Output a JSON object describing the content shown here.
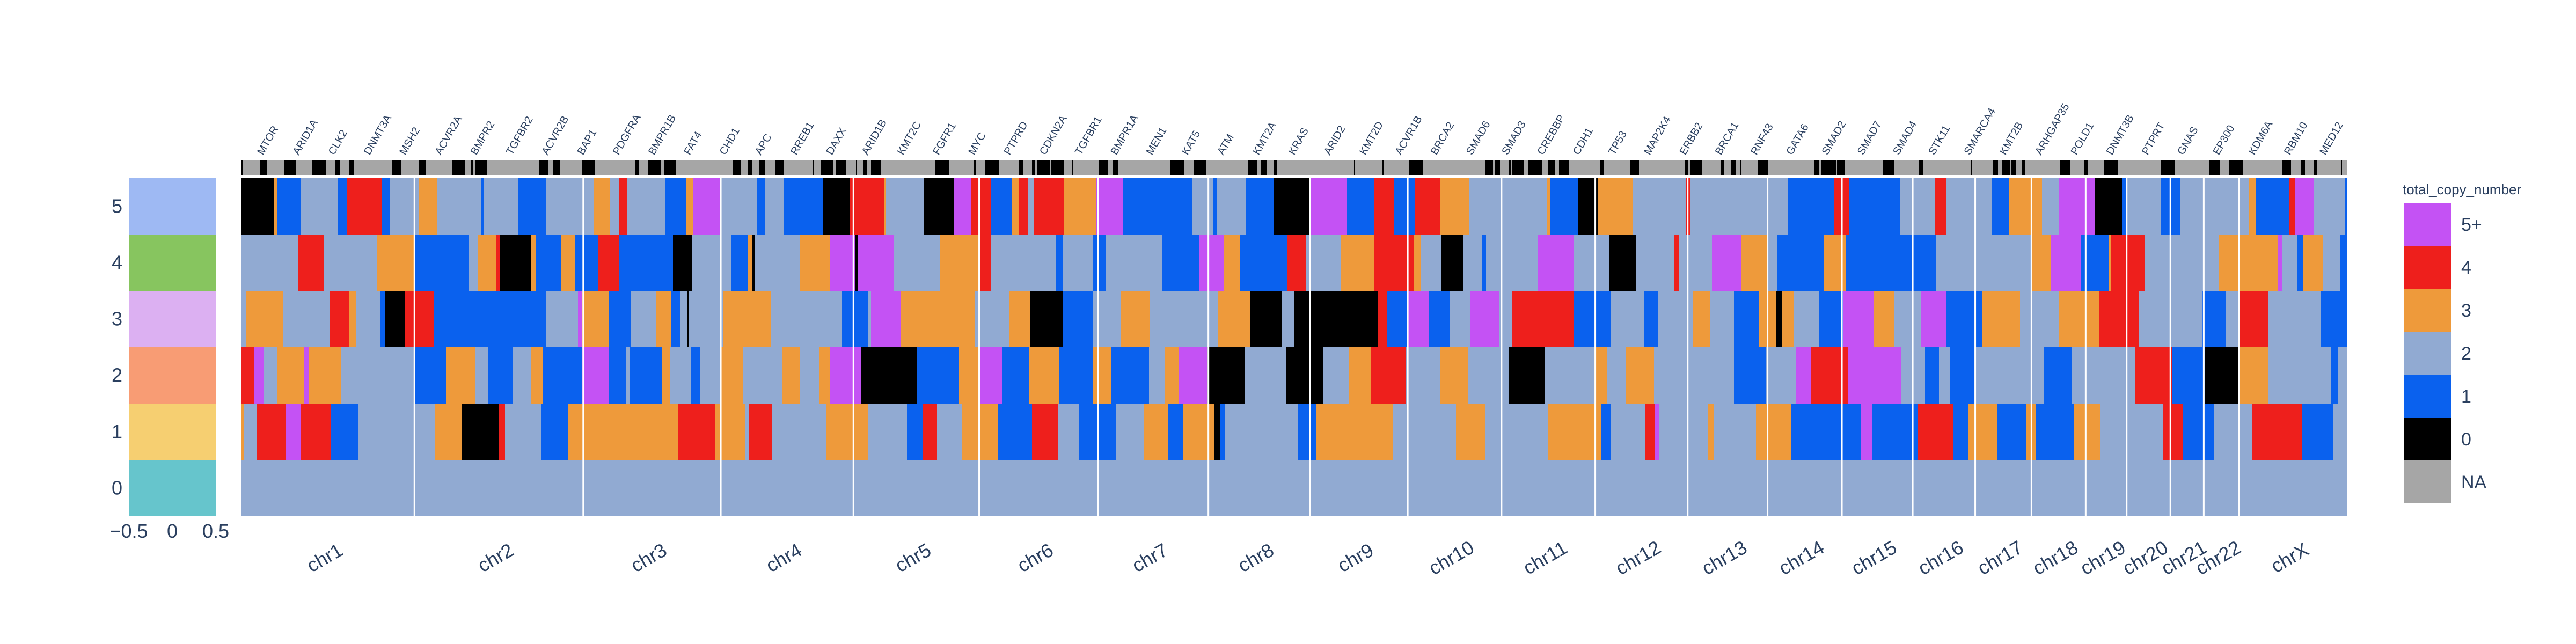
{
  "chart_data": {
    "type": "heatmap",
    "legend": {
      "title": "total_copy_number",
      "placement": "right",
      "entries": [
        {
          "label": "5+",
          "color": "#c452f4"
        },
        {
          "label": "4",
          "color": "#ee1f1c"
        },
        {
          "label": "3",
          "color": "#ee9a3b"
        },
        {
          "label": "2",
          "color": "#91aad2"
        },
        {
          "label": "1",
          "color": "#0a61ee"
        },
        {
          "label": "0",
          "color": "#000000"
        },
        {
          "label": "NA",
          "color": "#a6a6a6"
        }
      ]
    },
    "sample_track": {
      "x_ticks": [
        "−0.5",
        "0",
        "0.5"
      ],
      "xlim": [
        -0.5,
        0.5
      ],
      "y_ticks": [
        "0",
        "1",
        "2",
        "3",
        "4",
        "5"
      ],
      "colors": [
        "#66c5cc",
        "#f6cf71",
        "#f89c74",
        "#dcb0f2",
        "#87c55f",
        "#9eb9f3"
      ]
    },
    "chromosomes": [
      {
        "name": "chr1",
        "length": 249
      },
      {
        "name": "chr2",
        "length": 243
      },
      {
        "name": "chr3",
        "length": 198
      },
      {
        "name": "chr4",
        "length": 191
      },
      {
        "name": "chr5",
        "length": 181
      },
      {
        "name": "chr6",
        "length": 171
      },
      {
        "name": "chr7",
        "length": 159
      },
      {
        "name": "chr8",
        "length": 146
      },
      {
        "name": "chr9",
        "length": 141
      },
      {
        "name": "chr10",
        "length": 135
      },
      {
        "name": "chr11",
        "length": 135
      },
      {
        "name": "chr12",
        "length": 133
      },
      {
        "name": "chr13",
        "length": 115
      },
      {
        "name": "chr14",
        "length": 107
      },
      {
        "name": "chr15",
        "length": 102
      },
      {
        "name": "chr16",
        "length": 90
      },
      {
        "name": "chr17",
        "length": 81
      },
      {
        "name": "chr18",
        "length": 78
      },
      {
        "name": "chr19",
        "length": 59
      },
      {
        "name": "chr20",
        "length": 63
      },
      {
        "name": "chr21",
        "length": 48
      },
      {
        "name": "chr22",
        "length": 51
      },
      {
        "name": "chrX",
        "length": 155
      }
    ],
    "genes": [
      "MTOR",
      "ARID1A",
      "CLK2",
      "DNMT3A",
      "MSH2",
      "ACVR2A",
      "BMPR2",
      "TGFBR2",
      "ACVR2B",
      "BAP1",
      "PDGFRA",
      "BMPR1B",
      "FAT4",
      "CHD1",
      "APC",
      "RREB1",
      "DAXX",
      "ARID1B",
      "KMT2C",
      "FGFR1",
      "MYC",
      "PTPRD",
      "CDKN2A",
      "TGFBR1",
      "BMPR1A",
      "MEN1",
      "KAT5",
      "ATM",
      "KMT2A",
      "KRAS",
      "ARID2",
      "KMT2D",
      "ACVR1B",
      "BRCA2",
      "SMAD6",
      "SMAD3",
      "CREBBP",
      "CDH1",
      "TP53",
      "MAP2K4",
      "ERBB2",
      "BRCA1",
      "RNF43",
      "GATA6",
      "SMAD2",
      "SMAD7",
      "SMAD4",
      "STK11",
      "SMARCA4",
      "KMT2B",
      "ARHGAP35",
      "POLD1",
      "DNMT3B",
      "PTPRT",
      "GNAS",
      "EP300",
      "KDM6A",
      "RBM10",
      "MED12"
    ]
  }
}
